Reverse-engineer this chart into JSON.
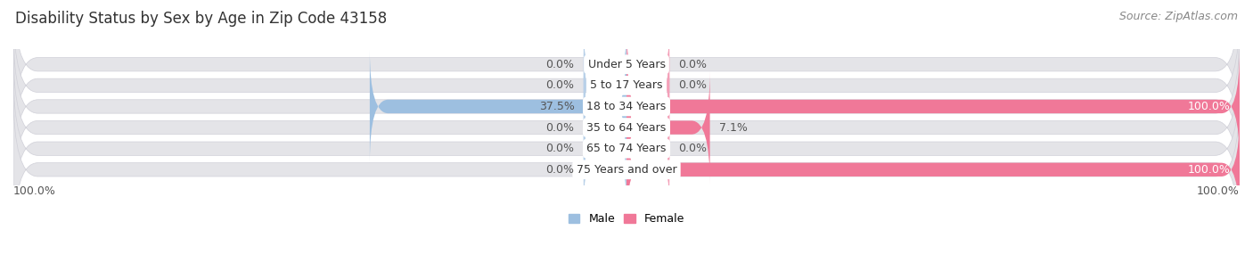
{
  "title": "Disability Status by Sex by Age in Zip Code 43158",
  "source": "Source: ZipAtlas.com",
  "categories": [
    "Under 5 Years",
    "5 to 17 Years",
    "18 to 34 Years",
    "35 to 64 Years",
    "65 to 74 Years",
    "75 Years and over"
  ],
  "male_values": [
    0.0,
    0.0,
    37.5,
    0.0,
    0.0,
    0.0
  ],
  "female_values": [
    0.0,
    0.0,
    100.0,
    7.1,
    0.0,
    100.0
  ],
  "male_color": "#9dbfe0",
  "female_color": "#f07898",
  "male_stub_color": "#b8d0e8",
  "female_stub_color": "#f4a0b8",
  "male_label": "Male",
  "female_label": "Female",
  "bar_bg_color": "#e4e4e8",
  "bar_bg_outline": "#d0d0d8",
  "max_val": 100.0,
  "stub_size": 7.0,
  "title_fontsize": 12,
  "source_fontsize": 9,
  "label_fontsize": 9,
  "category_fontsize": 9,
  "value_fontsize": 9
}
